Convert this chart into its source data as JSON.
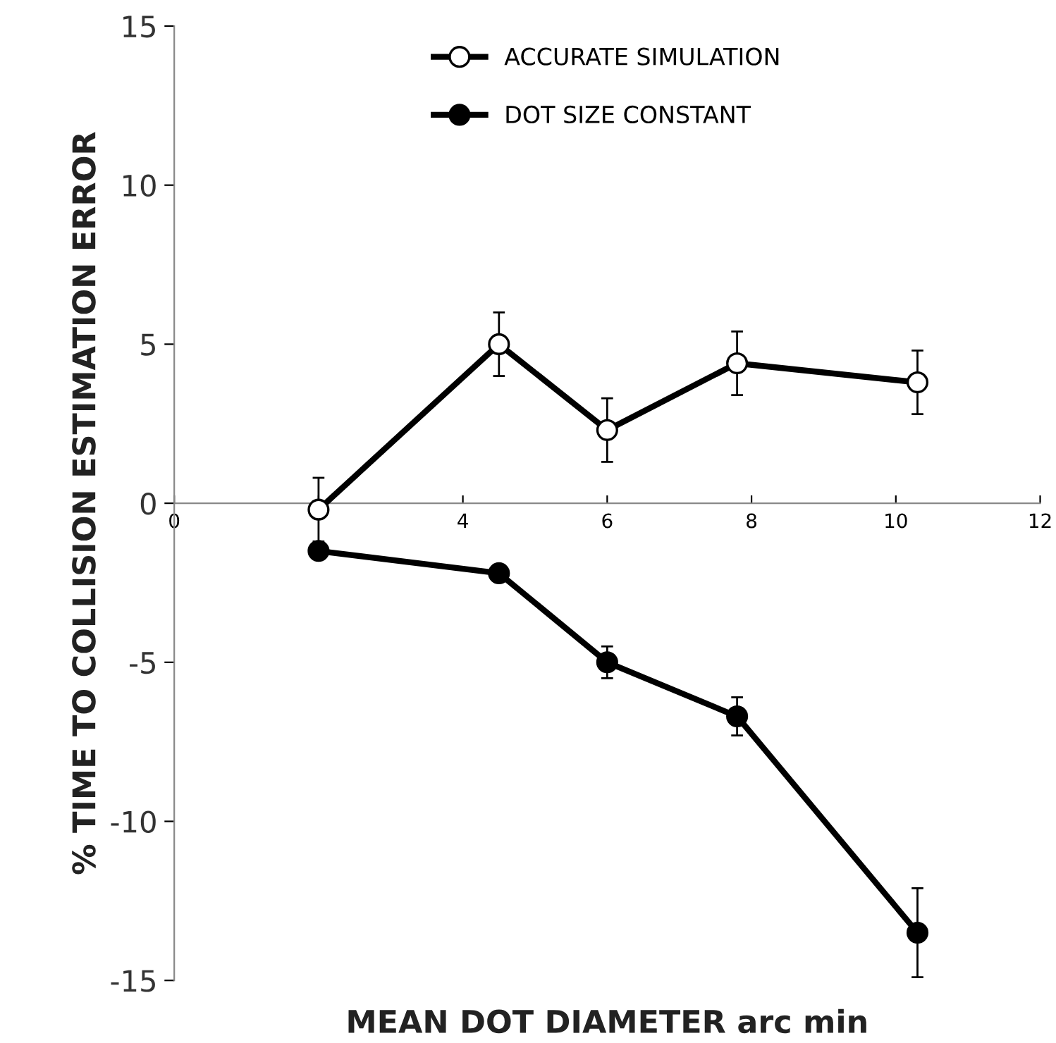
{
  "chart_data": {
    "type": "line",
    "xlabel": "MEAN DOT DIAMETER arc min",
    "ylabel": "% TIME TO COLLISION ESTIMATION ERROR",
    "x": [
      2,
      4.5,
      6,
      7.8,
      10.3
    ],
    "series": [
      {
        "name": "ACCURATE SIMULATION",
        "color": "#000000",
        "colors": [
          "#ffffff",
          "#ffffff",
          "#ffffff",
          "#ffffff",
          "#ffffff"
        ],
        "values": [
          -0.2,
          5.0,
          2.3,
          4.4,
          3.8
        ],
        "errors": [
          1.0,
          1.0,
          1.0,
          1.0,
          1.0
        ]
      },
      {
        "name": "DOT SIZE CONSTANT",
        "color": "#000000",
        "colors": [
          "#000000",
          "#000000",
          "#000000",
          "#000000",
          "#000000"
        ],
        "values": [
          -1.5,
          -2.2,
          -5.0,
          -6.7,
          -13.5
        ],
        "errors": [
          null,
          null,
          0.5,
          0.6,
          1.4
        ]
      }
    ],
    "xlim": [
      0,
      12
    ],
    "xticks": [
      0,
      {
        "value": 2,
        "label": null
      },
      4,
      6,
      8,
      10,
      12
    ],
    "ylim": [
      -15,
      15
    ],
    "yticks": [
      -15,
      -10,
      -5,
      0,
      5,
      10,
      15
    ],
    "grid": false,
    "legend": "top",
    "marker": "circle",
    "line_style": "solid"
  }
}
